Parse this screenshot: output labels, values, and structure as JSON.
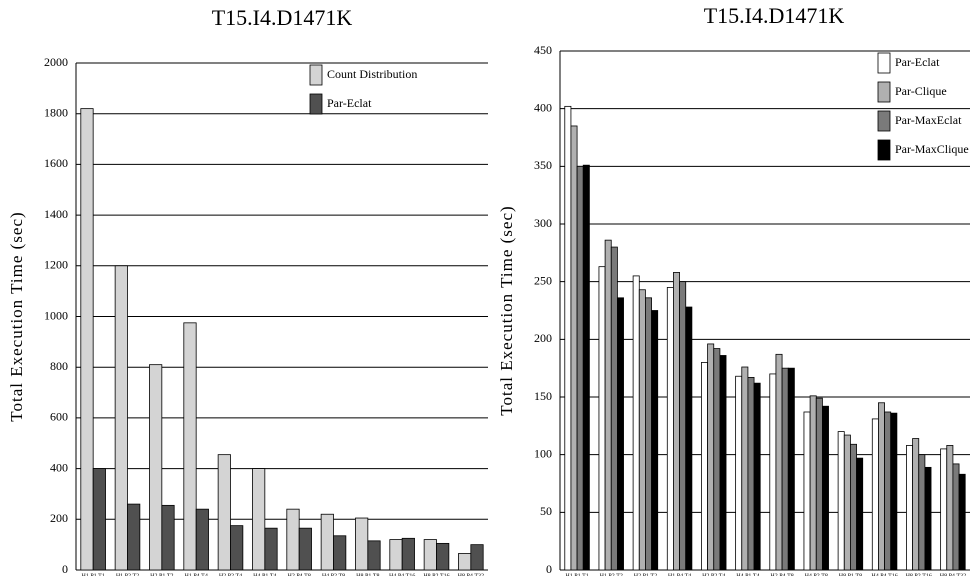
{
  "chart_data": [
    {
      "type": "bar",
      "title": "T15.I4.D1471K",
      "y_label": "Total Execution Time (sec)",
      "categories": [
        "H1.P1.T1",
        "H1.P2.T2",
        "H2.P1.T2",
        "H1.P4.T4",
        "H2.P2.T4",
        "H4.P1.T4",
        "H2.P4.T8",
        "H4.P2.T8",
        "H8.P1.T8",
        "H4.P4.T16",
        "H8.P2.T16",
        "H8.P4.T32"
      ],
      "series": [
        {
          "name": "Count Distribution",
          "color": "#d4d4d4",
          "values": [
            1820,
            1200,
            810,
            975,
            455,
            400,
            240,
            220,
            205,
            120,
            120,
            65
          ]
        },
        {
          "name": "Par-Eclat",
          "color": "#505050",
          "values": [
            400,
            260,
            255,
            240,
            175,
            165,
            165,
            135,
            115,
            125,
            105,
            100
          ]
        }
      ],
      "ylim": [
        0,
        2000
      ],
      "yticks": [
        0,
        200,
        400,
        600,
        800,
        1000,
        1200,
        1400,
        1600,
        1800,
        2000
      ],
      "grid": true,
      "legend": "upper-right"
    },
    {
      "type": "bar",
      "title": "T15.I4.D1471K",
      "y_label": "Total Execution Time (sec)",
      "categories": [
        "H1.P1.T1",
        "H1.P2.T2",
        "H2.P1.T2",
        "H1.P4.T4",
        "H2.P2.T4",
        "H4.P1.T4",
        "H2.P4.T8",
        "H4.P2.T8",
        "H8.P1.T8",
        "H4.P4.T16",
        "H8.P2.T16",
        "H8.P4.T32"
      ],
      "series": [
        {
          "name": "Par-Eclat",
          "color": "#ffffff",
          "values": [
            402,
            263,
            255,
            245,
            180,
            168,
            170,
            137,
            120,
            131,
            108,
            105
          ]
        },
        {
          "name": "Par-Clique",
          "color": "#b0b0b0",
          "values": [
            385,
            286,
            243,
            258,
            196,
            176,
            187,
            151,
            117,
            145,
            114,
            108
          ]
        },
        {
          "name": "Par-MaxEclat",
          "color": "#7a7a7a",
          "values": [
            350,
            280,
            236,
            250,
            192,
            167,
            175,
            149,
            109,
            137,
            100,
            92
          ]
        },
        {
          "name": "Par-MaxClique",
          "color": "#000000",
          "values": [
            351,
            236,
            225,
            228,
            186,
            162,
            175,
            142,
            97,
            136,
            89,
            83
          ]
        }
      ],
      "ylim": [
        0,
        450
      ],
      "yticks": [
        0,
        50,
        100,
        150,
        200,
        250,
        300,
        350,
        400,
        450
      ],
      "grid": true,
      "legend": "upper-right"
    }
  ]
}
